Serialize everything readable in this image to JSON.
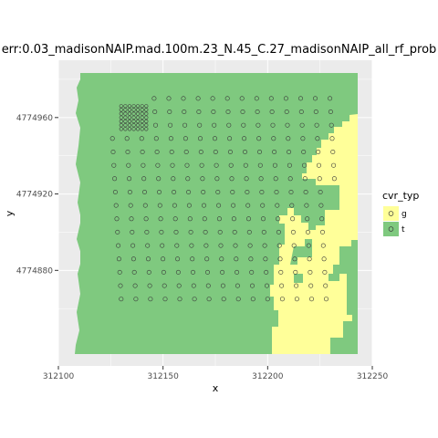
{
  "chart_data": {
    "type": "scatter",
    "title": "err:0.03_madisonNAIP.mad.100m.23_N.45_C.27_madisonNAIP_all_rf_prob",
    "xlabel": "x",
    "ylabel": "y",
    "xlim": [
      312100,
      312250
    ],
    "ylim": [
      4774830,
      4774990
    ],
    "x_ticks": [
      312100,
      312150,
      312200,
      312250
    ],
    "x_tick_labels": [
      "312100",
      "312150",
      "312200",
      "312250"
    ],
    "y_ticks": [
      4774880,
      4774920,
      4774960
    ],
    "y_tick_labels": [
      "4774880",
      "4774920",
      "4774960"
    ],
    "grid": true,
    "legend": {
      "title": "cvr_typ",
      "position": "right",
      "entries": [
        {
          "label": "g",
          "color": "#ffff99"
        },
        {
          "label": "t",
          "color": "#7fc97f"
        }
      ]
    },
    "raster_classes": {
      "g": "#ffff99",
      "t": "#7fc97f"
    },
    "sample_grid": {
      "x_start": 312130,
      "x_step": 7,
      "y_start": 4774865,
      "y_step": 7,
      "columns": 17,
      "rows": 16,
      "dense_block": {
        "x_start": 312130,
        "y_start": 4774954,
        "step": 2,
        "columns": 7,
        "rows": 7
      }
    }
  },
  "colors": {
    "panel_background": "#ebebeb",
    "grid_major": "#ffffff",
    "grass": "#ffff99",
    "tree": "#7fc97f",
    "point_stroke": "#3a3a3a"
  }
}
